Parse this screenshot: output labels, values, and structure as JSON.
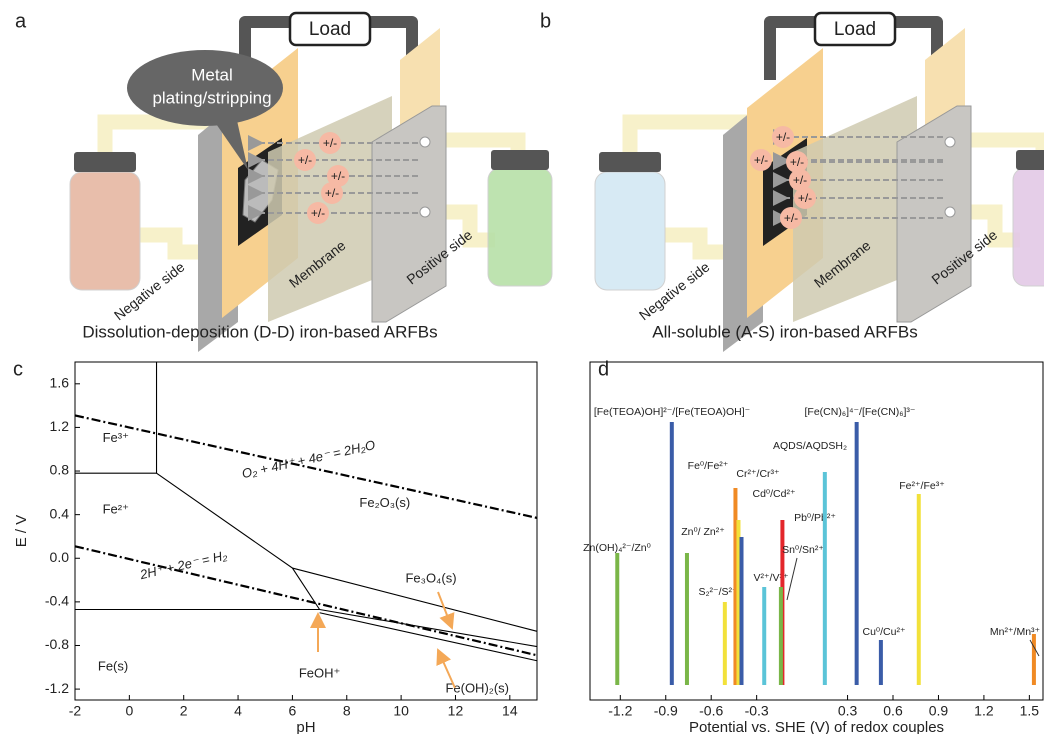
{
  "diagrams": [
    {
      "label": "a",
      "load": "Load",
      "callout": [
        "Metal",
        "plating/stripping"
      ],
      "ions": [
        "+/-",
        "+/-",
        "+/-",
        "+/-",
        "+/-"
      ],
      "negative": "Negative side",
      "membrane": "Membrane",
      "positive": "Positive side",
      "caption": "Dissolution-deposition (D-D) iron-based ARFBs"
    },
    {
      "label": "b",
      "load": "Load",
      "ions": [
        "+/-",
        "+/-",
        "+/-",
        "+/-",
        "+/-",
        "+/-"
      ],
      "negative": "Negative side",
      "membrane": "Membrane",
      "positive": "Positive side",
      "caption": "All-soluble (A-S) iron-based ARFBs"
    }
  ],
  "chart_data": [
    {
      "type": "line",
      "label": "c",
      "xlabel": "pH",
      "ylabel": "E / V",
      "xlim": [
        -2,
        15
      ],
      "ylim": [
        -1.3,
        1.8
      ],
      "xticks": [
        -2,
        0,
        2,
        4,
        6,
        8,
        10,
        12,
        14
      ],
      "yticks": [
        1.6,
        1.2,
        0.8,
        0.4,
        {
          "value": 0,
          "label": "0.0"
        },
        -0.4,
        -0.8,
        -1.2
      ],
      "series": [
        {
          "color": "#000000",
          "style": "solid",
          "x": [
            -2,
            1
          ],
          "values": [
            0.78,
            0.78
          ]
        },
        {
          "color": "#000000",
          "style": "solid",
          "x": [
            1,
            1
          ],
          "values": [
            0.78,
            1.8
          ]
        },
        {
          "color": "#000000",
          "style": "solid",
          "x": [
            1,
            6,
            7
          ],
          "values": [
            0.78,
            -0.09,
            -0.47
          ]
        },
        {
          "color": "#000000",
          "style": "solid",
          "x": [
            -2,
            7
          ],
          "values": [
            -0.47,
            -0.47
          ]
        },
        {
          "color": "#000000",
          "style": "solid",
          "x": [
            6,
            15
          ],
          "values": [
            -0.09,
            -0.67
          ]
        },
        {
          "color": "#000000",
          "style": "solid",
          "x": [
            7,
            15
          ],
          "values": [
            -0.47,
            -0.81
          ]
        },
        {
          "color": "#000000",
          "style": "solid",
          "x": [
            7,
            15
          ],
          "values": [
            -0.5,
            -0.94
          ]
        },
        {
          "color": "#000000",
          "style": "dashdot",
          "x": [
            -2,
            15
          ],
          "values": [
            1.31,
            0.37
          ]
        },
        {
          "color": "#000000",
          "style": "dashdot",
          "x": [
            -2,
            15
          ],
          "values": [
            0.11,
            -0.89
          ]
        }
      ],
      "annotations": [
        {
          "text": "Fe³⁺",
          "x": -0.5,
          "y": 1.1
        },
        {
          "text": "Fe²⁺",
          "x": -0.5,
          "y": 0.44
        },
        {
          "text": "Fe₂O₃(s)",
          "x": 9.4,
          "y": 0.5
        },
        {
          "text": "Fe(s)",
          "x": -0.6,
          "y": -1.0
        },
        {
          "text": "Fe₃O₄(s)",
          "x": 11.1,
          "y": -0.19
        },
        {
          "text": "FeOH⁺",
          "x": 7,
          "y": -1.06
        },
        {
          "text": "Fe(OH)₂(s)",
          "x": 12.8,
          "y": -1.2
        },
        {
          "text": "O₂ + 4H⁺ + 4e⁻ = 2H₂O",
          "x": 6.6,
          "y": 0.9
        },
        {
          "text": "2H⁺ + 2e⁻ = H₂",
          "x": 2.0,
          "y": -0.07
        }
      ]
    },
    {
      "type": "bar",
      "label": "d",
      "xlabel": "Potential vs. SHE (V) of redox couples",
      "xlim": [
        -1.4,
        1.59
      ],
      "xticks": [
        -1.2,
        -0.9,
        -0.6,
        -0.3,
        0.3,
        0.6,
        0.9,
        1.2,
        1.5
      ],
      "categories": [
        "Zn(OH)₄²⁻/Zn⁰",
        "[Fe(TEOA)OH]²⁻/[Fe(TEOA)OH]⁻",
        "Zn⁰/ Zn²⁺",
        "S₂²⁻/S²⁻",
        "Fe⁰/Fe²⁺",
        "Cr²⁺/Cr³⁺",
        "Cd⁰/Cd²⁺",
        "V²⁺/V³⁺",
        "Pb⁰/Pb²⁺",
        "Sn⁰/Sn²⁺",
        "AQDS/AQDSH₂",
        "[Fe(CN)₆]⁴⁻/[Fe(CN)₆]³⁻",
        "Cu⁰/Cu²⁺",
        "Fe²⁺/Fe³⁺",
        "Mn²⁺/Mn³⁺"
      ],
      "values": [
        -1.22,
        -0.86,
        -0.76,
        -0.51,
        -0.44,
        -0.42,
        -0.4,
        -0.25,
        -0.13,
        -0.14,
        0.15,
        0.36,
        0.52,
        0.77,
        1.53
      ],
      "colors": [
        "#7ab648",
        "#3a5ca8",
        "#7ab648",
        "#f2e13a",
        "#f08a24",
        "#f2e13a",
        "#3a5ca8",
        "#5bc4d8",
        "#e3262b",
        "#7ab648",
        "#5bc4d8",
        "#3a5ca8",
        "#3a5ca8",
        "#f2e13a",
        "#f08a24"
      ]
    }
  ]
}
